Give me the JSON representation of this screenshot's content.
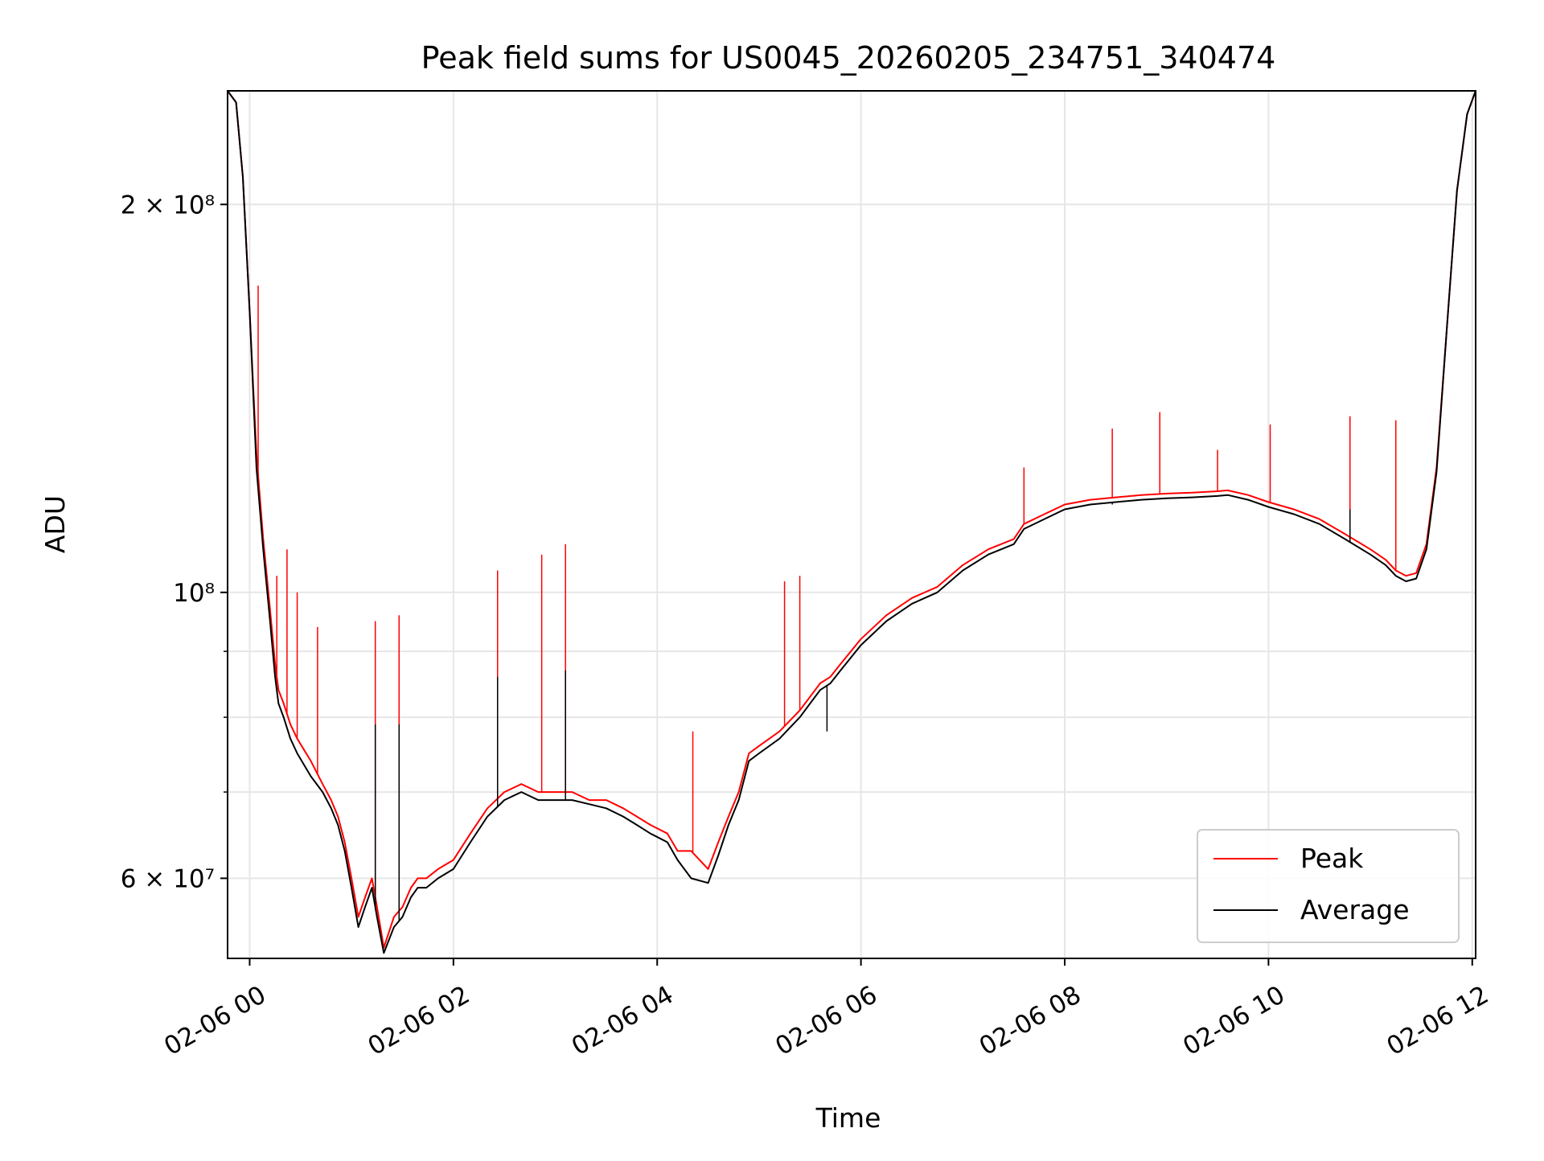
{
  "chart_data": {
    "type": "line",
    "title": "Peak field sums for US0045_20260205_234751_340474",
    "xlabel": "Time",
    "ylabel": "ADU",
    "yscale": "log",
    "xlim": [
      "02-05 23:47",
      "02-06 12:02"
    ],
    "ylim": [
      52000000,
      245000000
    ],
    "grid": true,
    "legend_position": "lower right",
    "x_ticks": [
      {
        "time": "02-06 00:00",
        "label": "02-06 00"
      },
      {
        "time": "02-06 02:00",
        "label": "02-06 02"
      },
      {
        "time": "02-06 04:00",
        "label": "02-06 04"
      },
      {
        "time": "02-06 06:00",
        "label": "02-06 06"
      },
      {
        "time": "02-06 08:00",
        "label": "02-06 08"
      },
      {
        "time": "02-06 10:00",
        "label": "02-06 10"
      },
      {
        "time": "02-06 12:00",
        "label": "02-06 12"
      }
    ],
    "y_ticks": [
      {
        "value": 60000000,
        "label": "6 × 10⁷"
      },
      {
        "value": 100000000,
        "label": "10⁸"
      },
      {
        "value": 200000000,
        "label": "2 × 10⁸"
      }
    ],
    "y_minor_ticks": [
      70000000,
      80000000,
      90000000
    ],
    "series": [
      {
        "name": "Peak",
        "color": "#ff0000",
        "x": [
          "02-05 23:47",
          "02-05 23:52",
          "02-05 23:56",
          "02-06 00:00",
          "02-06 00:04",
          "02-06 00:08",
          "02-06 00:12",
          "02-06 00:15",
          "02-06 00:17",
          "02-06 00:20",
          "02-06 00:24",
          "02-06 00:28",
          "02-06 00:36",
          "02-06 00:43",
          "02-06 00:48",
          "02-06 00:52",
          "02-06 00:56",
          "02-06 01:00",
          "02-06 01:04",
          "02-06 01:08",
          "02-06 01:12",
          "02-06 01:15",
          "02-06 01:19",
          "02-06 01:25",
          "02-06 01:30",
          "02-06 01:35",
          "02-06 01:39",
          "02-06 01:44",
          "02-06 01:51",
          "02-06 02:00",
          "02-06 02:10",
          "02-06 02:20",
          "02-06 02:30",
          "02-06 02:40",
          "02-06 02:50",
          "02-06 03:00",
          "02-06 03:10",
          "02-06 03:20",
          "02-06 03:30",
          "02-06 03:40",
          "02-06 03:48",
          "02-06 03:56",
          "02-06 04:06",
          "02-06 04:12",
          "02-06 04:20",
          "02-06 04:30",
          "02-06 04:36",
          "02-06 04:42",
          "02-06 04:48",
          "02-06 04:54",
          "02-06 05:00",
          "02-06 05:12",
          "02-06 05:24",
          "02-06 05:36",
          "02-06 05:42",
          "02-06 05:48",
          "02-06 06:00",
          "02-06 06:15",
          "02-06 06:30",
          "02-06 06:45",
          "02-06 07:00",
          "02-06 07:15",
          "02-06 07:30",
          "02-06 07:36",
          "02-06 07:48",
          "02-06 08:00",
          "02-06 08:15",
          "02-06 08:30",
          "02-06 08:45",
          "02-06 09:00",
          "02-06 09:15",
          "02-06 09:30",
          "02-06 09:36",
          "02-06 09:48",
          "02-06 10:00",
          "02-06 10:15",
          "02-06 10:30",
          "02-06 10:45",
          "02-06 11:00",
          "02-06 11:09",
          "02-06 11:15",
          "02-06 11:21",
          "02-06 11:27",
          "02-06 11:33",
          "02-06 11:39",
          "02-06 11:45",
          "02-06 11:51",
          "02-06 11:57",
          "02-06 12:02"
        ],
        "y": [
          245000000,
          240000000,
          210000000,
          165000000,
          128000000,
          110000000,
          97000000,
          88000000,
          84000000,
          82000000,
          79000000,
          77000000,
          74000000,
          71000000,
          69000000,
          67000000,
          64000000,
          60000000,
          56000000,
          58000000,
          60000000,
          57000000,
          53000000,
          56000000,
          57000000,
          59000000,
          60000000,
          60000000,
          61000000,
          62000000,
          65000000,
          68000000,
          70000000,
          71000000,
          70000000,
          70000000,
          70000000,
          69000000,
          69000000,
          68000000,
          67000000,
          66000000,
          65000000,
          63000000,
          63000000,
          61000000,
          64000000,
          67000000,
          70000000,
          75000000,
          76000000,
          78000000,
          81000000,
          85000000,
          86000000,
          88000000,
          92000000,
          96000000,
          99000000,
          101000000,
          105000000,
          108000000,
          110000000,
          113000000,
          115000000,
          117000000,
          118000000,
          118500000,
          119000000,
          119300000,
          119500000,
          119800000,
          120000000,
          119000000,
          117500000,
          116000000,
          114000000,
          111000000,
          108000000,
          106000000,
          104000000,
          103000000,
          103500000,
          109000000,
          125000000,
          160000000,
          205000000,
          235000000,
          245000000
        ],
        "spikes": [
          {
            "x": "02-06 00:05",
            "y": 173000000
          },
          {
            "x": "02-06 00:16",
            "y": 103000000
          },
          {
            "x": "02-06 00:22",
            "y": 108000000
          },
          {
            "x": "02-06 00:28",
            "y": 100000000
          },
          {
            "x": "02-06 00:40",
            "y": 94000000
          },
          {
            "x": "02-06 01:14",
            "y": 95000000
          },
          {
            "x": "02-06 01:28",
            "y": 96000000
          },
          {
            "x": "02-06 02:26",
            "y": 104000000
          },
          {
            "x": "02-06 02:52",
            "y": 107000000
          },
          {
            "x": "02-06 03:06",
            "y": 109000000
          },
          {
            "x": "02-06 04:21",
            "y": 78000000
          },
          {
            "x": "02-06 05:15",
            "y": 102000000
          },
          {
            "x": "02-06 05:24",
            "y": 103000000
          },
          {
            "x": "02-06 07:36",
            "y": 125000000
          },
          {
            "x": "02-06 08:28",
            "y": 134000000
          },
          {
            "x": "02-06 08:56",
            "y": 138000000
          },
          {
            "x": "02-06 09:30",
            "y": 129000000
          },
          {
            "x": "02-06 10:01",
            "y": 135000000
          },
          {
            "x": "02-06 10:48",
            "y": 137000000
          },
          {
            "x": "02-06 11:15",
            "y": 136000000
          }
        ]
      },
      {
        "name": "Average",
        "color": "#000000",
        "x": [
          "02-05 23:47",
          "02-05 23:52",
          "02-05 23:56",
          "02-06 00:00",
          "02-06 00:04",
          "02-06 00:08",
          "02-06 00:12",
          "02-06 00:15",
          "02-06 00:17",
          "02-06 00:20",
          "02-06 00:24",
          "02-06 00:28",
          "02-06 00:36",
          "02-06 00:43",
          "02-06 00:48",
          "02-06 00:52",
          "02-06 00:56",
          "02-06 01:00",
          "02-06 01:04",
          "02-06 01:08",
          "02-06 01:12",
          "02-06 01:15",
          "02-06 01:19",
          "02-06 01:25",
          "02-06 01:30",
          "02-06 01:35",
          "02-06 01:39",
          "02-06 01:44",
          "02-06 01:51",
          "02-06 02:00",
          "02-06 02:10",
          "02-06 02:20",
          "02-06 02:30",
          "02-06 02:40",
          "02-06 02:50",
          "02-06 03:00",
          "02-06 03:10",
          "02-06 03:20",
          "02-06 03:30",
          "02-06 03:40",
          "02-06 03:48",
          "02-06 03:56",
          "02-06 04:06",
          "02-06 04:12",
          "02-06 04:20",
          "02-06 04:30",
          "02-06 04:36",
          "02-06 04:42",
          "02-06 04:48",
          "02-06 04:54",
          "02-06 05:00",
          "02-06 05:12",
          "02-06 05:24",
          "02-06 05:36",
          "02-06 05:42",
          "02-06 05:48",
          "02-06 06:00",
          "02-06 06:15",
          "02-06 06:30",
          "02-06 06:45",
          "02-06 07:00",
          "02-06 07:15",
          "02-06 07:30",
          "02-06 07:36",
          "02-06 07:48",
          "02-06 08:00",
          "02-06 08:15",
          "02-06 08:30",
          "02-06 08:45",
          "02-06 09:00",
          "02-06 09:15",
          "02-06 09:30",
          "02-06 09:36",
          "02-06 09:48",
          "02-06 10:00",
          "02-06 10:15",
          "02-06 10:30",
          "02-06 10:45",
          "02-06 11:00",
          "02-06 11:09",
          "02-06 11:15",
          "02-06 11:21",
          "02-06 11:27",
          "02-06 11:33",
          "02-06 11:39",
          "02-06 11:45",
          "02-06 11:51",
          "02-06 11:57",
          "02-06 12:02"
        ],
        "y": [
          245000000,
          240000000,
          210000000,
          165000000,
          125000000,
          108000000,
          95000000,
          86000000,
          82000000,
          80000000,
          77000000,
          75000000,
          72000000,
          70000000,
          68000000,
          66000000,
          63000000,
          59000000,
          55000000,
          57000000,
          59000000,
          56000000,
          52500000,
          55000000,
          56000000,
          58000000,
          59000000,
          59000000,
          60000000,
          61000000,
          64000000,
          67000000,
          69000000,
          70000000,
          69000000,
          69000000,
          69000000,
          68500000,
          68000000,
          67000000,
          66000000,
          65000000,
          64000000,
          62000000,
          60000000,
          59500000,
          62500000,
          66000000,
          69000000,
          74000000,
          75000000,
          77000000,
          80000000,
          84000000,
          85000000,
          87000000,
          91000000,
          95000000,
          98000000,
          100000000,
          104000000,
          107000000,
          109000000,
          112000000,
          114000000,
          116000000,
          117000000,
          117500000,
          118000000,
          118300000,
          118500000,
          118800000,
          119000000,
          118000000,
          116500000,
          115000000,
          113000000,
          110000000,
          107000000,
          105000000,
          103000000,
          102000000,
          102500000,
          108000000,
          124000000,
          160000000,
          205000000,
          235000000,
          245000000
        ],
        "spikes": [
          {
            "x": "02-06 01:14",
            "y": 79000000
          },
          {
            "x": "02-06 01:28",
            "y": 79000000
          },
          {
            "x": "02-06 02:26",
            "y": 86000000
          },
          {
            "x": "02-06 03:06",
            "y": 87000000
          },
          {
            "x": "02-06 05:40",
            "y": 78000000
          },
          {
            "x": "02-06 08:28",
            "y": 117000000
          },
          {
            "x": "02-06 10:48",
            "y": 116000000
          }
        ]
      }
    ]
  }
}
